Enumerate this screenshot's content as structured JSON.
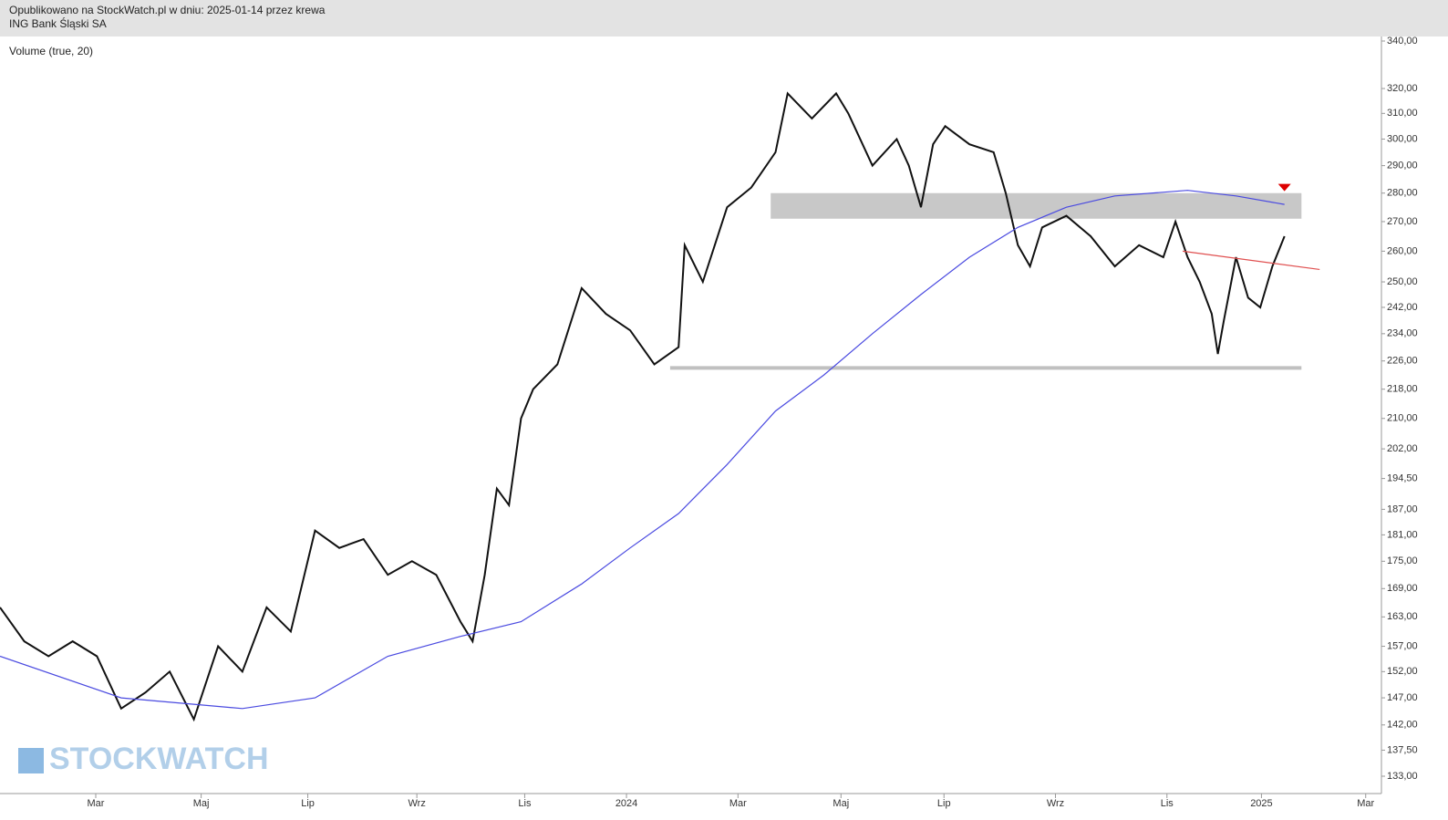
{
  "chart_data": {
    "type": "line",
    "title": "Opublikowano na StockWatch.pl w dniu: 2025-01-14 przez krewa",
    "subtitle": "ING Bank Śląski SA",
    "annotation": "Volume (true, 20)",
    "watermark": "STOCKWATCH",
    "log_scale": true,
    "xlim": [
      0,
      114
    ],
    "xticks": [
      {
        "value": 7.9,
        "label": "Mar"
      },
      {
        "value": 16.6,
        "label": "Maj"
      },
      {
        "value": 25.4,
        "label": "Lip"
      },
      {
        "value": 34.4,
        "label": "Wrz"
      },
      {
        "value": 43.3,
        "label": "Lis"
      },
      {
        "value": 51.7,
        "label": "2024"
      },
      {
        "value": 60.9,
        "label": "Mar"
      },
      {
        "value": 69.4,
        "label": "Maj"
      },
      {
        "value": 77.9,
        "label": "Lip"
      },
      {
        "value": 87.1,
        "label": "Wrz"
      },
      {
        "value": 96.3,
        "label": "Lis"
      },
      {
        "value": 104.1,
        "label": "2025"
      },
      {
        "value": 112.7,
        "label": "Mar"
      }
    ],
    "ylim": [
      133,
      340
    ],
    "yticks": [
      {
        "value": 340,
        "label": "340,00"
      },
      {
        "value": 320,
        "label": "320,00"
      },
      {
        "value": 310,
        "label": "310,00"
      },
      {
        "value": 300,
        "label": "300,00"
      },
      {
        "value": 290,
        "label": "290,00"
      },
      {
        "value": 280,
        "label": "280,00"
      },
      {
        "value": 270,
        "label": "270,00"
      },
      {
        "value": 260,
        "label": "260,00"
      },
      {
        "value": 250,
        "label": "250,00"
      },
      {
        "value": 242,
        "label": "242,00"
      },
      {
        "value": 234,
        "label": "234,00"
      },
      {
        "value": 226,
        "label": "226,00"
      },
      {
        "value": 218,
        "label": "218,00"
      },
      {
        "value": 210,
        "label": "210,00"
      },
      {
        "value": 202,
        "label": "202,00"
      },
      {
        "value": 194.5,
        "label": "194,50"
      },
      {
        "value": 187,
        "label": "187,00"
      },
      {
        "value": 181,
        "label": "181,00"
      },
      {
        "value": 175,
        "label": "175,00"
      },
      {
        "value": 169,
        "label": "169,00"
      },
      {
        "value": 163,
        "label": "163,00"
      },
      {
        "value": 157,
        "label": "157,00"
      },
      {
        "value": 152,
        "label": "152,00"
      },
      {
        "value": 147,
        "label": "147,00"
      },
      {
        "value": 142,
        "label": "142,00"
      },
      {
        "value": 137.5,
        "label": "137,50"
      },
      {
        "value": 133,
        "label": "133,00"
      }
    ],
    "series": [
      {
        "color": "#111111",
        "x": [
          0,
          2,
          4,
          6,
          8,
          10,
          12,
          14,
          16,
          18,
          20,
          22,
          24,
          26,
          28,
          30,
          32,
          34,
          36,
          38,
          39,
          40,
          41,
          42,
          43,
          44,
          46,
          48,
          50,
          52,
          54,
          56,
          56.5,
          58,
          60,
          62,
          64,
          65,
          67,
          69,
          70,
          72,
          74,
          75,
          76,
          77,
          78,
          80,
          82,
          83,
          84,
          85,
          86,
          88,
          90,
          92,
          94,
          96,
          97,
          98,
          99,
          100,
          100.5,
          101,
          102,
          103,
          104,
          105,
          106
        ],
        "values": [
          165,
          158,
          155,
          158,
          155,
          145,
          148,
          152,
          143,
          157,
          152,
          165,
          160,
          182,
          178,
          180,
          172,
          175,
          172,
          162,
          158,
          172,
          192,
          188,
          210,
          218,
          225,
          248,
          240,
          235,
          225,
          230,
          262,
          250,
          275,
          282,
          295,
          318,
          308,
          318,
          310,
          290,
          300,
          290,
          275,
          298,
          305,
          298,
          295,
          280,
          262,
          255,
          268,
          272,
          265,
          255,
          262,
          258,
          270,
          258,
          250,
          240,
          228,
          238,
          258,
          245,
          242,
          255,
          265
        ]
      },
      {
        "color": "#4a4ae0",
        "x": [
          0,
          10,
          20,
          26,
          32,
          38,
          43,
          48,
          52,
          56,
          60,
          64,
          68,
          72,
          76,
          80,
          84,
          88,
          92,
          98,
          102,
          106
        ],
        "values": [
          155,
          147,
          145,
          147,
          155,
          159,
          162,
          170,
          178,
          186,
          198,
          212,
          222,
          234,
          246,
          258,
          268,
          275,
          279,
          281,
          279,
          276
        ]
      }
    ],
    "zones": [
      {
        "from": 271,
        "to": 280,
        "x": [
          63.6,
          107.4
        ],
        "color": "#c8c8c8"
      }
    ],
    "levels": [
      {
        "value": 224,
        "x": [
          55.3,
          107.4
        ],
        "color": "#c0c0c0"
      }
    ],
    "trendline": {
      "x": [
        97.6,
        108.9
      ],
      "values": [
        260,
        254
      ],
      "color": "#e05050"
    },
    "marker": {
      "x": 106,
      "value": 282,
      "color": "#dd0000"
    }
  }
}
